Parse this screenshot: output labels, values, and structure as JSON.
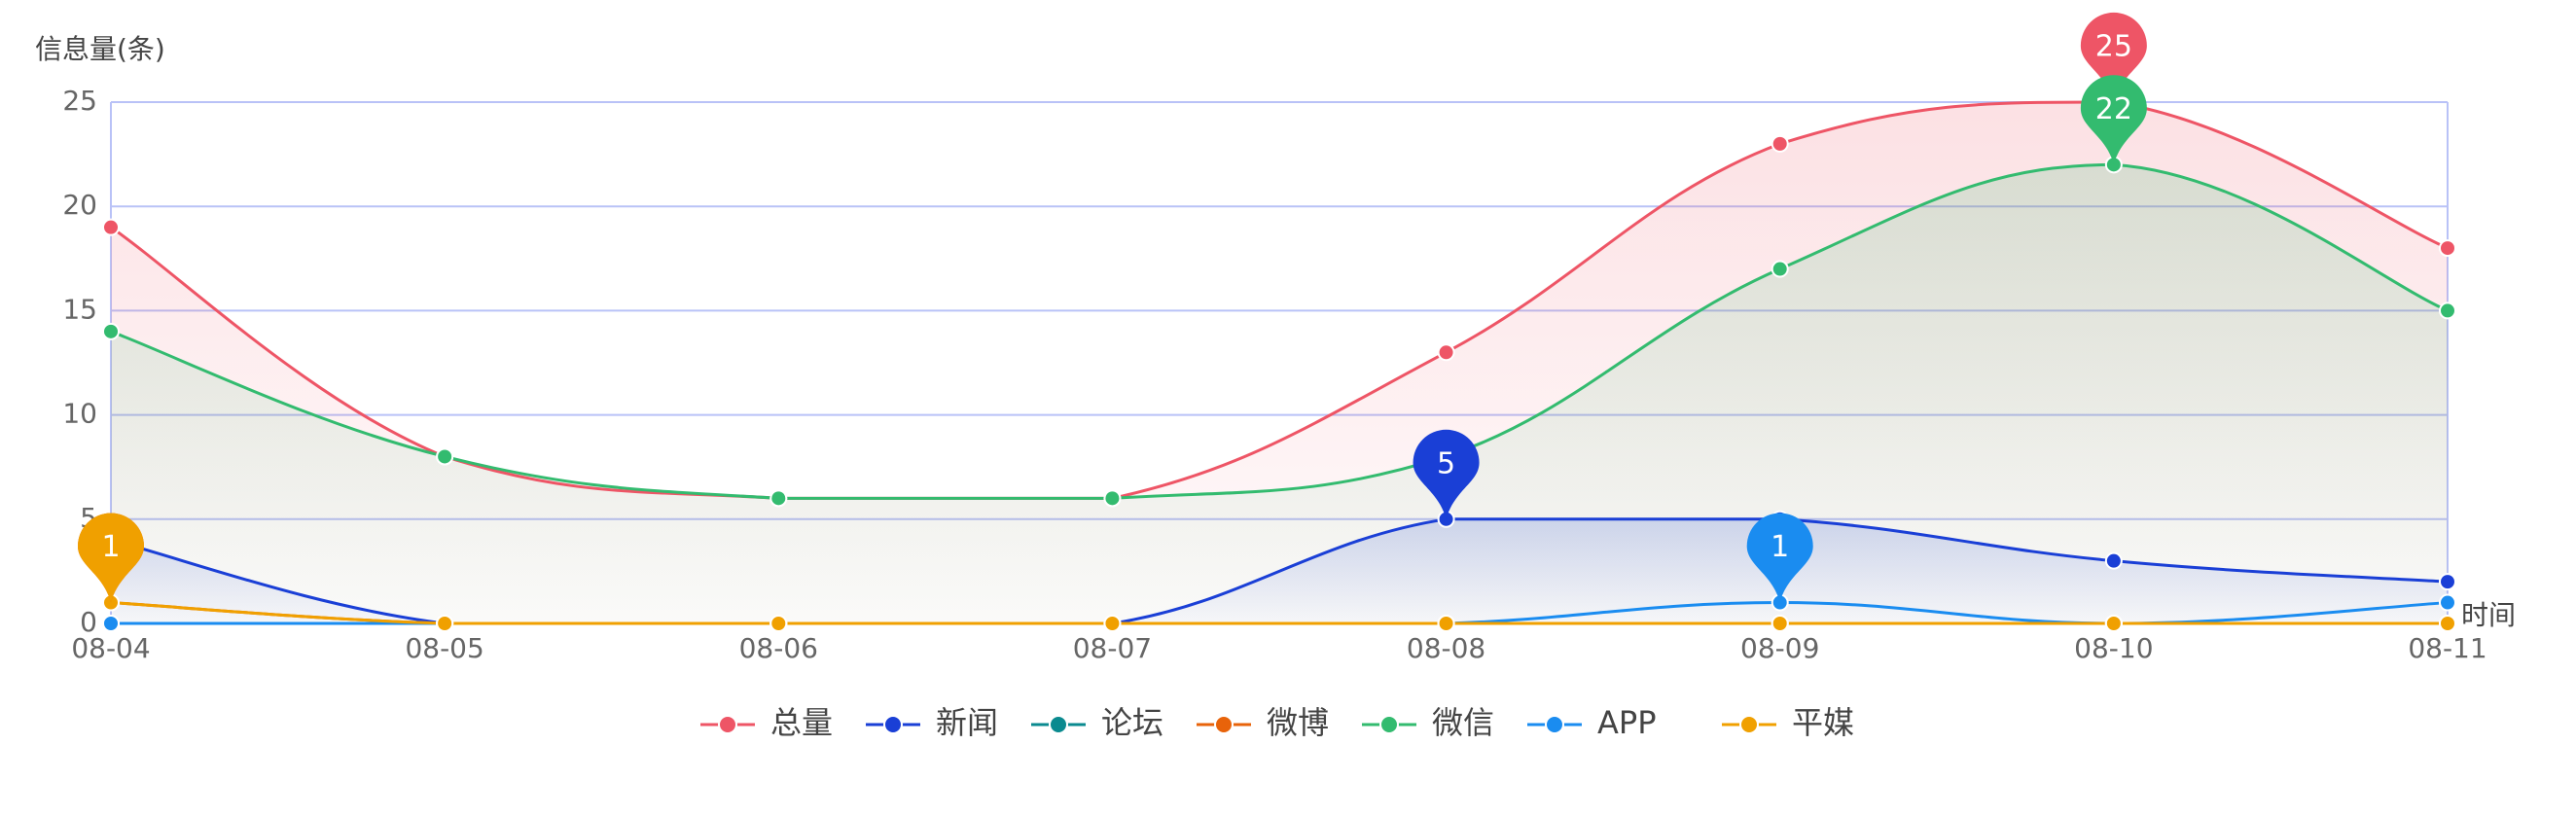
{
  "chart_data": {
    "type": "line",
    "y_axis_label": "信息量(条)",
    "x_axis_label": "时间",
    "categories": [
      "08-04",
      "08-05",
      "08-06",
      "08-07",
      "08-08",
      "08-09",
      "08-10",
      "08-11"
    ],
    "series": [
      {
        "name": "总量",
        "color": "#ee5566",
        "area": true,
        "values": [
          19,
          8,
          6,
          6,
          13,
          23,
          25,
          18
        ]
      },
      {
        "name": "新闻",
        "color": "#1a3fd6",
        "area": true,
        "values": [
          4,
          0,
          0,
          0,
          5,
          5,
          3,
          2
        ]
      },
      {
        "name": "论坛",
        "color": "#0a8a8f",
        "area": false,
        "values": [
          0,
          0,
          0,
          0,
          0,
          0,
          0,
          0
        ]
      },
      {
        "name": "微博",
        "color": "#e8630a",
        "area": false,
        "values": [
          1,
          0,
          0,
          0,
          0,
          0,
          0,
          0
        ]
      },
      {
        "name": "微信",
        "color": "#33bb6f",
        "area": true,
        "values": [
          14,
          8,
          6,
          6,
          8,
          17,
          22,
          15
        ]
      },
      {
        "name": "APP",
        "color": "#1a8cf0",
        "area": false,
        "values": [
          0,
          0,
          0,
          0,
          0,
          1,
          0,
          1
        ]
      },
      {
        "name": "平媒",
        "color": "#f0a000",
        "area": false,
        "values": [
          1,
          0,
          0,
          0,
          0,
          0,
          0,
          0
        ]
      }
    ],
    "ylim": [
      0,
      25
    ],
    "yticks": [
      0,
      5,
      10,
      15,
      20,
      25
    ],
    "grid": true,
    "markers": "max",
    "legend": "bottom",
    "smooth": true
  }
}
